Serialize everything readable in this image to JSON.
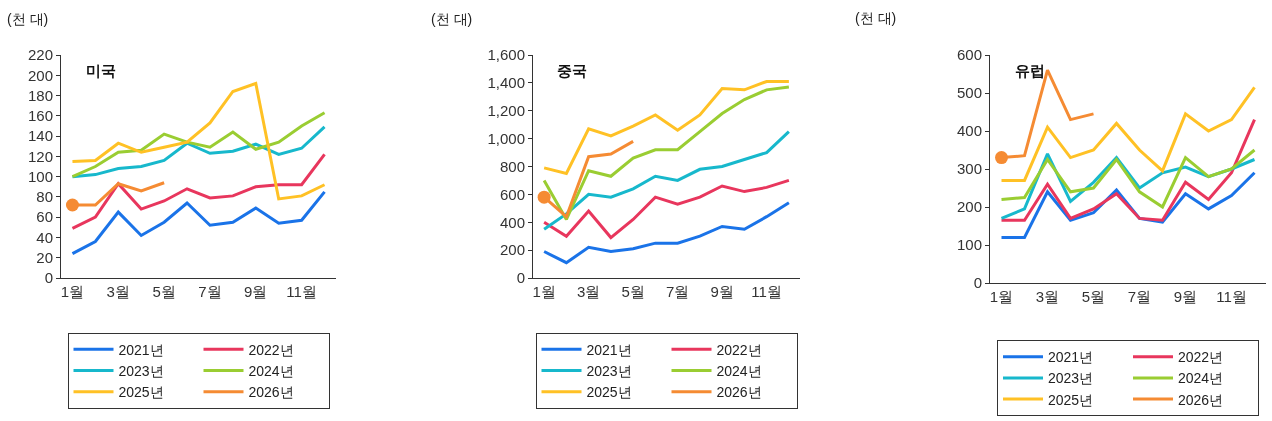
{
  "chart_data": [
    {
      "type": "line",
      "title": "미국",
      "ylabel": "(천 대)",
      "categories": [
        "1월",
        null,
        "3월",
        null,
        "5월",
        null,
        "7월",
        null,
        "9월",
        null,
        "11월",
        null
      ],
      "ylim": [
        0,
        220
      ],
      "yticks": [
        0,
        20,
        40,
        60,
        80,
        100,
        120,
        140,
        160,
        180,
        200,
        220
      ],
      "grid": false,
      "legend": "bottom",
      "line_style": "solid",
      "marker": "none",
      "series": [
        {
          "name": "2021년",
          "color": "#1a73e8",
          "values": [
            24,
            36,
            65,
            42,
            55,
            74,
            52,
            55,
            69,
            54,
            57,
            85
          ]
        },
        {
          "name": "2022년",
          "color": "#e8365d",
          "values": [
            49,
            60,
            93,
            68,
            76,
            88,
            79,
            81,
            90,
            92,
            92,
            122
          ]
        },
        {
          "name": "2023년",
          "color": "#17b8cc",
          "values": [
            100,
            102,
            108,
            110,
            116,
            133,
            123,
            125,
            132,
            122,
            128,
            149
          ]
        },
        {
          "name": "2024년",
          "color": "#9acd32",
          "values": [
            100,
            110,
            124,
            126,
            142,
            134,
            129,
            144,
            127,
            134,
            150,
            163
          ]
        },
        {
          "name": "2025년",
          "color": "#ffc125",
          "values": [
            115,
            116,
            133,
            124,
            129,
            134,
            153,
            184,
            192,
            78,
            81,
            92
          ]
        },
        {
          "name": "2026년",
          "color": "#f58b33",
          "values": [
            72,
            72,
            93,
            86,
            94,
            null,
            null,
            null,
            null,
            null,
            null,
            null
          ]
        },
        {
          "type": "scatter",
          "marker": "circle",
          "color": "#f58b33",
          "values": [
            72,
            null,
            null,
            null,
            null,
            null,
            null,
            null,
            null,
            null,
            null,
            null
          ]
        }
      ]
    },
    {
      "type": "line",
      "title": "중국",
      "ylabel": "(천 대)",
      "categories": [
        "1월",
        null,
        "3월",
        null,
        "5월",
        null,
        "7월",
        null,
        "9월",
        null,
        "11월",
        null
      ],
      "ylim": [
        0,
        1600
      ],
      "yticks": [
        0,
        200,
        400,
        600,
        800,
        {
          "value": 1000,
          "label": "1,000"
        },
        {
          "value": 1200,
          "label": "1,200"
        },
        {
          "value": 1400,
          "label": "1,400"
        },
        {
          "value": 1600,
          "label": "1,600"
        }
      ],
      "grid": false,
      "legend": "bottom",
      "line_style": "solid",
      "marker": "none",
      "series": [
        {
          "name": "2021년",
          "color": "#1a73e8",
          "values": [
            190,
            110,
            220,
            190,
            210,
            250,
            250,
            300,
            370,
            350,
            440,
            540
          ]
        },
        {
          "name": "2022년",
          "color": "#e8365d",
          "values": [
            400,
            300,
            480,
            290,
            420,
            580,
            530,
            580,
            660,
            620,
            650,
            700
          ]
        },
        {
          "name": "2023년",
          "color": "#17b8cc",
          "values": [
            350,
            460,
            600,
            580,
            640,
            730,
            700,
            780,
            800,
            850,
            900,
            1050
          ]
        },
        {
          "name": "2024년",
          "color": "#9acd32",
          "values": [
            700,
            420,
            770,
            730,
            860,
            920,
            920,
            1050,
            1180,
            1280,
            1350,
            1370
          ]
        },
        {
          "name": "2025년",
          "color": "#ffc125",
          "values": [
            790,
            750,
            1070,
            1020,
            1090,
            1170,
            1060,
            1170,
            1360,
            1350,
            1410,
            1410
          ]
        },
        {
          "name": "2026년",
          "color": "#f58b33",
          "values": [
            580,
            440,
            870,
            890,
            980,
            null,
            null,
            null,
            null,
            null,
            null,
            null
          ]
        },
        {
          "type": "scatter",
          "marker": "circle",
          "color": "#f58b33",
          "values": [
            580,
            null,
            null,
            null,
            null,
            null,
            null,
            null,
            null,
            null,
            null,
            null
          ]
        }
      ]
    },
    {
      "type": "line",
      "title": "유럽",
      "ylabel": "(천 대)",
      "categories": [
        "1월",
        null,
        "3월",
        null,
        "5월",
        null,
        "7월",
        null,
        "9월",
        null,
        "11월",
        null
      ],
      "ylim": [
        0,
        600
      ],
      "yticks": [
        0,
        100,
        200,
        300,
        400,
        500,
        600
      ],
      "grid": false,
      "legend": "bottom",
      "line_style": "solid",
      "marker": "none",
      "series": [
        {
          "name": "2021년",
          "color": "#1a73e8",
          "values": [
            120,
            120,
            240,
            165,
            185,
            245,
            170,
            160,
            235,
            195,
            230,
            290
          ]
        },
        {
          "name": "2022년",
          "color": "#e8365d",
          "values": [
            165,
            165,
            260,
            170,
            195,
            235,
            170,
            165,
            265,
            220,
            290,
            430
          ]
        },
        {
          "name": "2023년",
          "color": "#17b8cc",
          "values": [
            170,
            195,
            340,
            215,
            265,
            330,
            250,
            290,
            305,
            280,
            300,
            325
          ]
        },
        {
          "name": "2024년",
          "color": "#9acd32",
          "values": [
            220,
            225,
            325,
            240,
            250,
            325,
            240,
            200,
            330,
            280,
            300,
            350
          ]
        },
        {
          "name": "2025년",
          "color": "#ffc125",
          "values": [
            270,
            270,
            410,
            330,
            350,
            420,
            350,
            295,
            445,
            400,
            430,
            515
          ]
        },
        {
          "name": "2026년",
          "color": "#f58b33",
          "values": [
            330,
            335,
            560,
            430,
            445,
            null,
            null,
            null,
            null,
            null,
            null,
            null
          ]
        },
        {
          "type": "scatter",
          "marker": "circle",
          "color": "#f58b33",
          "values": [
            330,
            null,
            null,
            null,
            null,
            null,
            null,
            null,
            null,
            null,
            null,
            null
          ]
        }
      ]
    }
  ]
}
